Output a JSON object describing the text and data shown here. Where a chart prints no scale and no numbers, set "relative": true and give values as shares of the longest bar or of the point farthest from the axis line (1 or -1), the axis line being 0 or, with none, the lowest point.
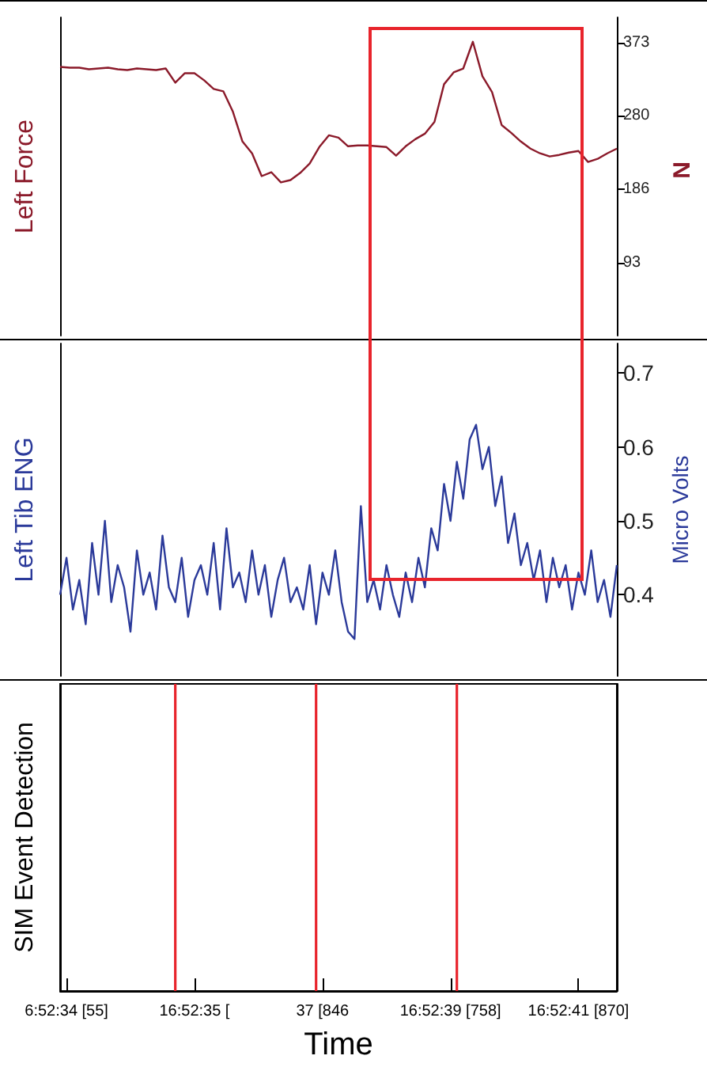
{
  "chart_data": [
    {
      "type": "line",
      "ylabel": "Left Force",
      "annotations": [
        "N"
      ],
      "categories": [
        null,
        null,
        null,
        null,
        null,
        null,
        null,
        null,
        null,
        null,
        null,
        null,
        null,
        null,
        null,
        null,
        null,
        null,
        null,
        null,
        null,
        null,
        null,
        null,
        null,
        null,
        null,
        null,
        null,
        null,
        null,
        null,
        null,
        null,
        null,
        null,
        null,
        null,
        null,
        null,
        null,
        null,
        null,
        null,
        null,
        null,
        null,
        null,
        null,
        null,
        null,
        null,
        null,
        null,
        null,
        null,
        null,
        null,
        null
      ],
      "ylim": [
        0,
        405
      ],
      "yticks": [
        93,
        186,
        280,
        373
      ],
      "tick_labels": "y",
      "grid": false,
      "line_style": "solid",
      "series": [
        {
          "color": "#8b1a2a",
          "values": [
            342,
            341,
            341,
            339,
            340,
            341,
            339,
            338,
            340,
            339,
            338,
            340,
            322,
            334,
            334,
            325,
            314,
            311,
            285,
            247,
            232,
            203,
            208,
            195,
            198,
            207,
            219,
            240,
            255,
            252,
            241,
            242,
            242,
            241,
            240,
            229,
            241,
            250,
            257,
            272,
            320,
            335,
            340,
            374,
            330,
            310,
            268,
            258,
            247,
            238,
            232,
            228,
            230,
            233,
            235,
            221,
            225,
            232,
            238
          ]
        }
      ]
    },
    {
      "type": "line",
      "ylabel": "Left Tib ENG",
      "annotations": [
        "Micro Volts"
      ],
      "categories": [
        null,
        null,
        null,
        null,
        null,
        null,
        null,
        null,
        null,
        null,
        null,
        null,
        null,
        null,
        null,
        null,
        null,
        null,
        null,
        null,
        null,
        null,
        null,
        null,
        null,
        null,
        null,
        null,
        null,
        null,
        null,
        null,
        null,
        null,
        null,
        null,
        null,
        null,
        null,
        null,
        null,
        null,
        null,
        null,
        null,
        null,
        null,
        null,
        null,
        null,
        null,
        null,
        null,
        null,
        null,
        null,
        null,
        null,
        null,
        null,
        null,
        null,
        null,
        null,
        null,
        null,
        null,
        null,
        null,
        null,
        null,
        null,
        null,
        null,
        null,
        null,
        null,
        null,
        null,
        null,
        null,
        null,
        null,
        null,
        null,
        null,
        null,
        null
      ],
      "ylim": [
        0.29,
        0.74
      ],
      "yticks": [
        0.4,
        0.5,
        0.6,
        0.7
      ],
      "tick_labels": "y",
      "grid": false,
      "line_style": "solid",
      "series": [
        {
          "color": "#2b3a9a",
          "values": [
            0.4,
            0.45,
            0.38,
            0.42,
            0.36,
            0.47,
            0.4,
            0.5,
            0.39,
            0.44,
            0.41,
            0.35,
            0.46,
            0.4,
            0.43,
            0.38,
            0.48,
            0.41,
            0.39,
            0.45,
            0.37,
            0.42,
            0.44,
            0.4,
            0.47,
            0.38,
            0.49,
            0.41,
            0.43,
            0.39,
            0.46,
            0.4,
            0.44,
            0.37,
            0.42,
            0.45,
            0.39,
            0.41,
            0.38,
            0.44,
            0.36,
            0.43,
            0.4,
            0.46,
            0.39,
            0.35,
            0.34,
            0.52,
            0.39,
            0.42,
            0.38,
            0.44,
            0.4,
            0.37,
            0.43,
            0.39,
            0.45,
            0.41,
            0.49,
            0.46,
            0.55,
            0.5,
            0.58,
            0.53,
            0.61,
            0.63,
            0.57,
            0.6,
            0.52,
            0.56,
            0.47,
            0.51,
            0.44,
            0.47,
            0.42,
            0.46,
            0.39,
            0.45,
            0.41,
            0.44,
            0.38,
            0.43,
            0.4,
            0.46,
            0.39,
            0.42,
            0.37,
            0.44
          ]
        }
      ]
    },
    {
      "type": "bar",
      "relative": true,
      "ylabel": "SIM Event Detection",
      "xlabel": "Time",
      "categories": [
        null,
        "6:52:34 [55]",
        null,
        null,
        null,
        null,
        null,
        null,
        null,
        null,
        null,
        null,
        null,
        null,
        null,
        null,
        null,
        null,
        null,
        null,
        null,
        "16:52:35 [",
        null,
        null,
        null,
        null,
        null,
        null,
        null,
        null,
        null,
        null,
        null,
        null,
        null,
        null,
        null,
        null,
        null,
        null,
        null,
        "37 [846",
        null,
        null,
        null,
        null,
        null,
        null,
        null,
        null,
        null,
        null,
        null,
        null,
        null,
        null,
        null,
        null,
        null,
        null,
        null,
        "16:52:39 [758]",
        null,
        null,
        null,
        null,
        null,
        null,
        null,
        null,
        null,
        null,
        null,
        null,
        null,
        null,
        null,
        null,
        null,
        null,
        null,
        "16:52:41 [870]",
        null,
        null,
        null,
        null,
        null,
        null
      ],
      "tick_labels": "x",
      "grid": false,
      "series": [
        {
          "color": "#e8242c",
          "values": [
            null,
            null,
            null,
            null,
            null,
            null,
            null,
            null,
            null,
            null,
            null,
            null,
            null,
            null,
            null,
            null,
            null,
            null,
            1,
            null,
            null,
            null,
            null,
            null,
            null,
            null,
            null,
            null,
            null,
            null,
            null,
            null,
            null,
            null,
            null,
            null,
            null,
            null,
            null,
            null,
            1,
            null,
            null,
            null,
            null,
            null,
            null,
            null,
            null,
            null,
            null,
            null,
            null,
            null,
            null,
            null,
            null,
            null,
            null,
            null,
            null,
            null,
            1,
            null,
            null,
            null,
            null,
            null,
            null,
            null,
            null,
            null,
            null,
            null,
            null,
            null,
            null,
            null,
            null,
            null,
            null,
            null,
            null,
            null,
            null,
            null,
            null,
            null
          ]
        }
      ]
    }
  ]
}
